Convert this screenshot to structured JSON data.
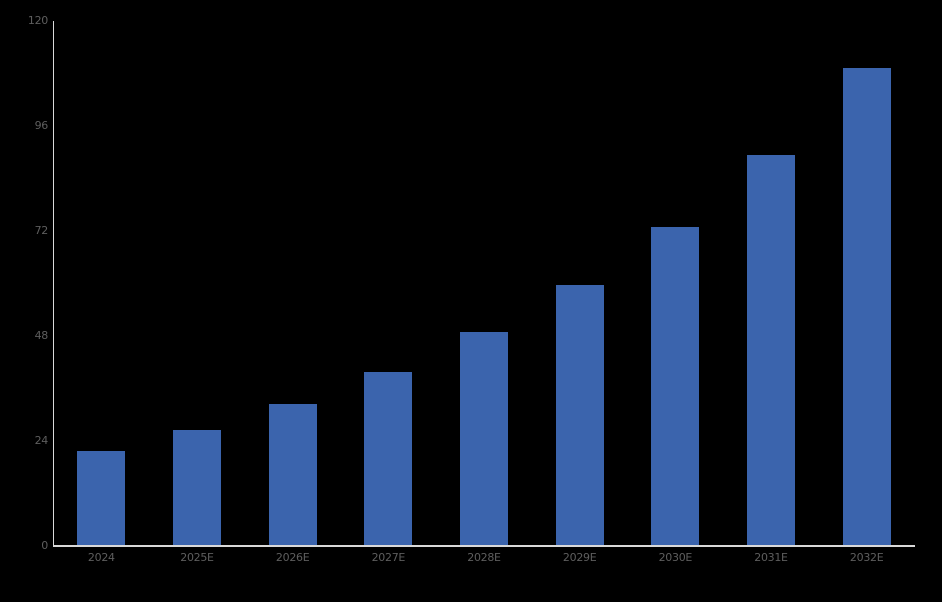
{
  "chart_data": {
    "type": "bar",
    "title": "",
    "xlabel": "",
    "ylabel": "",
    "categories": [
      "2024",
      "2025E",
      "2026E",
      "2027E",
      "2028E",
      "2029E",
      "2030E",
      "2031E",
      "2032E"
    ],
    "values": [
      21.7,
      26.5,
      32.4,
      39.8,
      48.8,
      59.7,
      72.9,
      89.4,
      109.3
    ],
    "ylim": [
      0,
      120
    ],
    "yticks": [
      0,
      24,
      48,
      72,
      96,
      120
    ],
    "grid": false,
    "legend": false,
    "colors": {
      "background": "#000000",
      "bar_fill": "#3B64AD",
      "axis_line": "#D9D9D9",
      "tick_label": "#5E5E5E"
    }
  }
}
